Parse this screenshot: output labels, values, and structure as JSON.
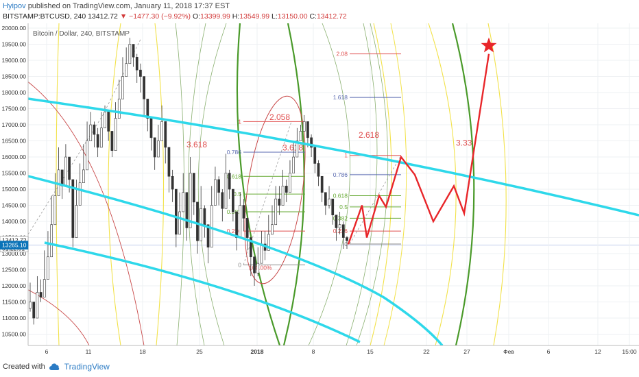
{
  "header": {
    "author": "Hyipov",
    "published": "published on TradingView.com, January 11, 2018 17:37 EST",
    "symbol": "BITSTAMP:BTCUSD, 240",
    "last": "13412.72",
    "change": "▼ −1477.30 (−9.92%)",
    "ohlc_o_label": "O:",
    "ohlc_o": "13399.99",
    "ohlc_h_label": "H:",
    "ohlc_h": "13549.99",
    "ohlc_l_label": "L:",
    "ohlc_l": "13150.00",
    "ohlc_c_label": "C:",
    "ohlc_c": "13412.72"
  },
  "footer": {
    "created_with": "Created with",
    "brand": "TradingView",
    "logo_icon": "tradingview-cloud-icon"
  },
  "chart_data": {
    "type": "candlestick",
    "legend_title": "Bitcoin / Dollar, 240, BITSTAMP",
    "ylim": [
      10150,
      20150
    ],
    "y_ticks": [
      "20000.00",
      "19500.00",
      "19000.00",
      "18500.00",
      "18000.00",
      "17500.00",
      "17000.00",
      "16500.00",
      "16000.00",
      "15500.00",
      "15000.00",
      "14500.00",
      "14000.00",
      "13500.00",
      "13000.00",
      "12500.00",
      "12000.00",
      "11500.00",
      "11000.00",
      "10500.00"
    ],
    "x_ticks": [
      "6",
      "11",
      "18",
      "25",
      "2018",
      "8",
      "15",
      "22",
      "27",
      "Фев",
      "6",
      "12",
      "15:00"
    ],
    "price_badges": [
      {
        "label": "13412.72",
        "sub": "01:22:51",
        "value": 13412.72,
        "color": "#ffffff"
      },
      {
        "label": "13265.10",
        "value": 13265.1,
        "color": "#0a73b8"
      }
    ],
    "price_path": [
      [
        11500,
        11000,
        11800,
        11650,
        12200,
        12900,
        13900,
        14800,
        15600,
        15100,
        16000,
        15300,
        13500,
        14500,
        15200,
        15600,
        16500,
        17000,
        16700,
        16300,
        16900,
        17400,
        16800,
        16200,
        17200,
        17800,
        18500,
        18900,
        19500,
        19100,
        18700,
        18500,
        17800,
        17200,
        16600,
        16000,
        16500,
        17100,
        16300,
        15400,
        15000,
        13600,
        14300,
        14900,
        13800,
        15500,
        14600,
        13400,
        14400,
        13900,
        13200,
        14500,
        15300,
        14900,
        14400,
        15500,
        15000,
        14300,
        13500,
        14500,
        14100,
        13500,
        12900,
        12400,
        12700,
        13300,
        13100,
        13600,
        13900,
        14700,
        14500,
        15100,
        14900,
        15500,
        16000,
        16500,
        16800,
        17100,
        16600,
        16300,
        15800,
        15400,
        14900,
        14500,
        14700,
        14200,
        13800,
        13900,
        13500,
        13400
      ],
      [
        12100,
        11300,
        12300,
        12200,
        13100,
        13700,
        14800,
        15500,
        16300,
        15500,
        16400,
        15600,
        14000,
        15300,
        15800,
        16400,
        17100,
        17400,
        17100,
        16900,
        17400,
        17600,
        17400,
        16800,
        17700,
        18400,
        19100,
        19400,
        19700,
        19500,
        19200,
        18900,
        18300,
        17600,
        17200,
        16400,
        17000,
        17600,
        16900,
        16000,
        15600,
        14600,
        14900,
        15500,
        14600,
        16000,
        15100,
        14200,
        15100,
        14500,
        13800,
        15100,
        15700,
        15400,
        15000,
        16100,
        15600,
        15000,
        14100,
        14900,
        14700,
        14100,
        13400,
        12900,
        13200,
        13700,
        13700,
        14200,
        14500,
        15100,
        15100,
        15600,
        15300,
        15900,
        16500,
        16900,
        17000,
        17300,
        17000,
        16700,
        16300,
        15900,
        15400,
        14900,
        15100,
        14700,
        14200,
        14300,
        14000,
        13550
      ],
      [
        11200,
        10800,
        11600,
        11500,
        12000,
        12600,
        13600,
        14500,
        15200,
        14700,
        15600,
        14900,
        13200,
        14200,
        14900,
        15400,
        16300,
        16700,
        16300,
        16000,
        16600,
        17000,
        16500,
        16000,
        17000,
        17600,
        18200,
        18600,
        19200,
        18800,
        18300,
        18000,
        17300,
        16800,
        16200,
        15600,
        16200,
        16800,
        15800,
        14900,
        14600,
        13200,
        13900,
        14600,
        13400,
        15200,
        14200,
        13000,
        14100,
        13500,
        12700,
        14100,
        14900,
        14500,
        14000,
        15200,
        14700,
        14000,
        13100,
        14200,
        13700,
        13100,
        12300,
        12000,
        12300,
        13000,
        12800,
        13300,
        13600,
        14500,
        14200,
        14900,
        14600,
        15300,
        15800,
        16200,
        16500,
        16800,
        16300,
        16000,
        15500,
        15100,
        14600,
        14200,
        14400,
        13900,
        13400,
        13600,
        13150,
        13150
      ]
    ],
    "fib_1": {
      "levels": [
        {
          "label": "1",
          "value": 17100
        },
        {
          "label": "0.786",
          "value": 16150
        },
        {
          "label": "0.618",
          "value": 15400
        },
        {
          "label": "0.5",
          "value": 14850
        },
        {
          "label": "0.382",
          "value": 14300
        },
        {
          "label": "0.236",
          "value": 13700
        },
        {
          "label": "0",
          "value": 12650
        }
      ],
      "extra_label": "100.00%",
      "ratios": [
        "2.058",
        "3.618",
        "3.618"
      ]
    },
    "fib_2": {
      "levels": [
        {
          "label": "2.08",
          "value": 19200
        },
        {
          "label": "1.618",
          "value": 17850
        },
        {
          "label": "1",
          "value": 16050
        },
        {
          "label": "0.786",
          "value": 15450
        },
        {
          "label": "0.618",
          "value": 14800
        },
        {
          "label": "0.5",
          "value": 14450
        },
        {
          "label": "0.382",
          "value": 14100
        },
        {
          "label": "0.236",
          "value": 13700
        },
        {
          "label": "0",
          "value": 13300
        }
      ],
      "ratios": [
        "2.618",
        "3.33"
      ]
    },
    "forecast_path": [
      13290,
      14500,
      13500,
      14800,
      14450,
      16000,
      15450,
      14000,
      15100,
      14250,
      19200
    ],
    "target_icon": "target-star-icon",
    "colors": {
      "channel": "#2ed8ea",
      "forecast": "#e8262a",
      "fib_red": "#e05050",
      "fib_blue": "#5a6ab0",
      "fib_green": "#66aa33",
      "yellow_arc": "#f2e24a",
      "green_arc": "#4a9a2a",
      "grey_arc": "#8ab070",
      "red_arc": "#c84848",
      "up_candle": "#ffffff",
      "down_candle": "#333333"
    }
  }
}
